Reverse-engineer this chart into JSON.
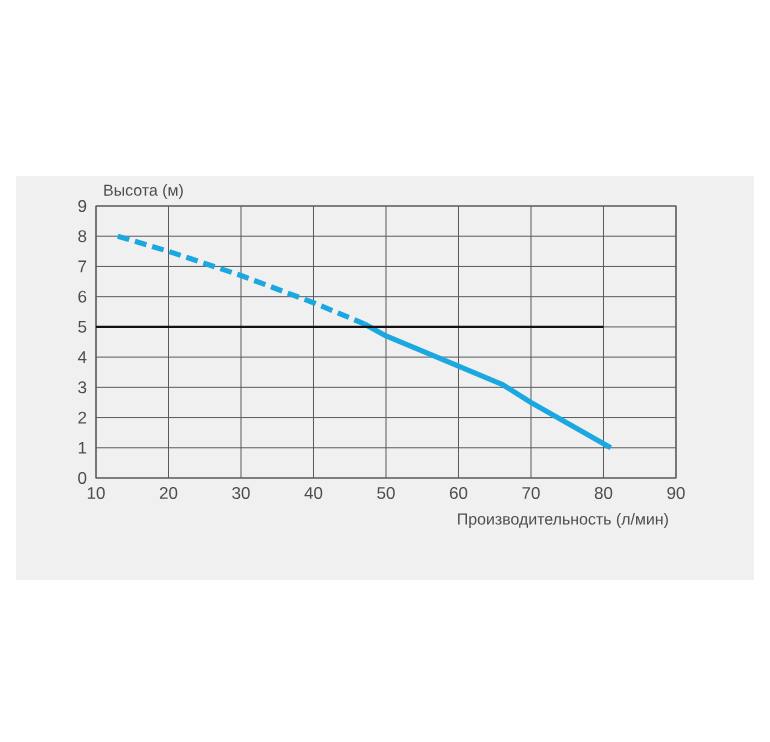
{
  "chart_data": {
    "type": "line",
    "ylabel": "Высота (м)",
    "xlabel": "Производительность (л/мин)",
    "xlim": [
      10,
      90
    ],
    "ylim": [
      0,
      9
    ],
    "xticks": [
      10,
      20,
      30,
      40,
      50,
      60,
      70,
      80,
      90
    ],
    "yticks": [
      0,
      1,
      2,
      3,
      4,
      5,
      6,
      7,
      8,
      9
    ],
    "grid": true,
    "series": [
      {
        "color": "#1ba8e0",
        "line_style": "dashed",
        "x": [
          13,
          20,
          30,
          40,
          47
        ],
        "values": [
          8,
          7.5,
          6.7,
          5.8,
          5.1
        ]
      },
      {
        "color": "#1ba8e0",
        "line_style": "solid",
        "x": [
          47,
          50,
          60,
          66,
          70,
          81
        ],
        "values": [
          5.1,
          4.7,
          3.7,
          3.1,
          2.5,
          1
        ]
      }
    ],
    "ref_lines": [
      {
        "axis": "y",
        "value": 5,
        "color": "#111111"
      }
    ]
  }
}
